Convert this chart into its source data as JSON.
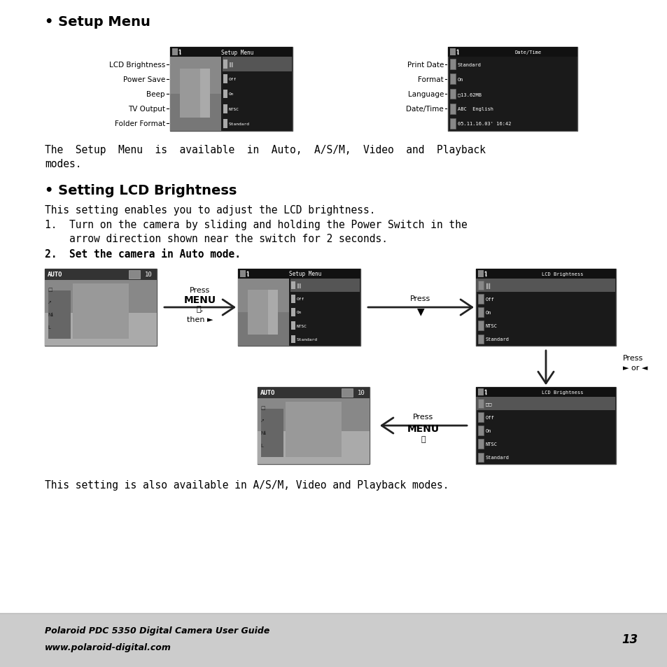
{
  "bg_color": "#ffffff",
  "footer_bg": "#cccccc",
  "title1": "Setup Menu",
  "title2": "Setting LCD Brightness",
  "bullet": "•",
  "footer_line1": "Polaroid PDC 5350 Digital Camera User Guide",
  "footer_line2": "www.polaroid-digital.com",
  "page_number": "13",
  "para1_line1": "The  Setup  Menu  is  available  in  Auto,  A/S/M,  Video  and  Playback",
  "para1_line2": "modes.",
  "section2_intro": "This setting enables you to adjust the LCD brightness.",
  "step1_line1": "1.  Turn on the camera by sliding and holding the Power Switch in the",
  "step1_line2": "    arrow direction shown near the switch for 2 seconds.",
  "step2": "2.  Set the camera in Auto mode.",
  "closing": "This setting is also available in A/S/M, Video and Playback modes.",
  "setup_menu_labels": [
    "LCD Brightness",
    "Power Save",
    "Beep",
    "TV Output",
    "Folder Format"
  ],
  "setup_menu_items": [
    "║║",
    "Off",
    "On",
    "NTSC",
    "Standard"
  ],
  "date_time_labels": [
    "Print Date",
    "Format",
    "Language",
    "Date/Time"
  ],
  "date_time_items": [
    "Standard",
    "On",
    "▢13.62MB",
    "ABC  English",
    "05.11.16.03' 16:42"
  ],
  "lcd_items_top": [
    "║║",
    "Off",
    "On",
    "NTSC",
    "Standard"
  ],
  "lcd_items_bot": [
    "□□",
    "Off",
    "On",
    "NTSC",
    "Standard"
  ]
}
